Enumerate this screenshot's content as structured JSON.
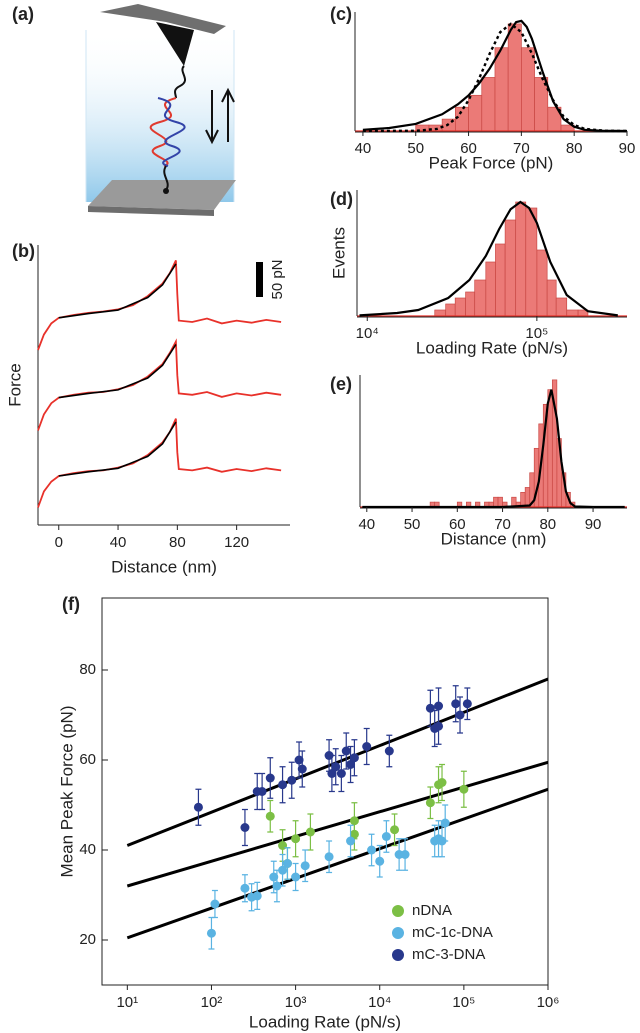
{
  "chart_data": [
    {
      "type": "schematic",
      "label": "(a)"
    },
    {
      "type": "line",
      "label": "(b)",
      "x_label": "Distance (nm)",
      "y_label": "Force",
      "xlim": [
        -14,
        156
      ],
      "xticks": [
        0,
        40,
        80,
        120
      ],
      "ylim": [
        0,
        400
      ],
      "scale_bar": {
        "value": 50,
        "label": "50 pN"
      },
      "x": [
        -14,
        -10,
        -5,
        0,
        10,
        20,
        30,
        40,
        50,
        60,
        70,
        75,
        79,
        80,
        81,
        90,
        100,
        110,
        120,
        130,
        140,
        150
      ],
      "series": [
        {
          "color": "#e8312a",
          "values": [
            250,
            272,
            288,
            296,
            300,
            303,
            305,
            308,
            314,
            327,
            345,
            360,
            378,
            330,
            292,
            290,
            295,
            288,
            292,
            289,
            293,
            290
          ]
        },
        {
          "color": "#e8312a",
          "values": [
            135,
            158,
            174,
            182,
            186,
            189,
            190,
            194,
            200,
            212,
            230,
            246,
            262,
            214,
            188,
            186,
            190,
            183,
            188,
            185,
            189,
            186
          ]
        },
        {
          "color": "#e8312a",
          "values": [
            25,
            48,
            62,
            70,
            74,
            77,
            78,
            82,
            88,
            100,
            118,
            133,
            152,
            104,
            80,
            78,
            82,
            76,
            80,
            77,
            81,
            78
          ]
        },
        {
          "color": "#000000",
          "x": [
            0,
            20,
            40,
            60,
            70,
            79
          ],
          "values": [
            296,
            302,
            307,
            325,
            343,
            373
          ]
        },
        {
          "color": "#000000",
          "x": [
            0,
            20,
            40,
            60,
            70,
            79
          ],
          "values": [
            182,
            188,
            193,
            210,
            228,
            258
          ]
        },
        {
          "color": "#000000",
          "x": [
            0,
            20,
            40,
            60,
            70,
            79
          ],
          "values": [
            70,
            76,
            81,
            98,
            116,
            147
          ]
        }
      ]
    },
    {
      "type": "histogram",
      "label": "(c)",
      "x_label": "Peak Force (pN)",
      "xlim": [
        38.5,
        90
      ],
      "xticks": [
        40,
        50,
        60,
        70,
        80,
        90
      ],
      "ylim": [
        0,
        20
      ],
      "bins": [
        50,
        52.5,
        55,
        57.5,
        60,
        62.5,
        65,
        67.5,
        70,
        72.5,
        75,
        77.5,
        80
      ],
      "counts": [
        1,
        1,
        2,
        4,
        6,
        9,
        14,
        18,
        14,
        9,
        4,
        1
      ],
      "color": "#e8635f",
      "fits": [
        {
          "color": "#000000",
          "dashed": false,
          "x": [
            40,
            45,
            50,
            55,
            58,
            60,
            62,
            64,
            66,
            68,
            69,
            70,
            71,
            72,
            74,
            76,
            78,
            80,
            82,
            85,
            90
          ],
          "values": [
            0.2,
            0.5,
            1.2,
            2.8,
            4.5,
            6,
            8,
            10.5,
            13.5,
            17,
            18.3,
            18.5,
            17.5,
            15.5,
            10,
            5,
            2,
            0.7,
            0.2,
            0.05,
            0
          ]
        },
        {
          "color": "#000000",
          "dashed": true,
          "x": [
            40,
            50,
            54,
            56,
            58,
            60,
            62,
            64,
            66,
            68,
            70,
            72,
            74,
            76,
            78,
            80,
            82,
            86,
            90
          ],
          "values": [
            0,
            0.03,
            0.36,
            1,
            2.4,
            5.2,
            8.8,
            13,
            16.6,
            18,
            16.6,
            13,
            8.8,
            5.2,
            2.4,
            1,
            0.36,
            0.03,
            0
          ]
        }
      ]
    },
    {
      "type": "histogram",
      "label": "(d)",
      "x_label": "Loading Rate (pN/s)",
      "y_label": "Events",
      "log_x": true,
      "xlim": [
        8700,
        340000
      ],
      "xticks": [
        {
          "value": 10000,
          "label": "10⁴"
        },
        {
          "value": 100000,
          "label": "10⁵"
        }
      ],
      "ylim": [
        0,
        21
      ],
      "bins": [
        25000,
        29000,
        33000,
        38000,
        43000,
        50000,
        57000,
        65000,
        75000,
        86000,
        100000,
        115000,
        130000,
        150000,
        175000,
        200000
      ],
      "counts": [
        1,
        2,
        3,
        4,
        6,
        9,
        12,
        16,
        19,
        18,
        11,
        6,
        3,
        1,
        1
      ],
      "color": "#e8635f",
      "fits": [
        {
          "color": "#000000",
          "dashed": false,
          "x": [
            9000,
            15000,
            20000,
            30000,
            40000,
            50000,
            60000,
            70000,
            80000,
            90000,
            100000,
            120000,
            150000,
            200000,
            300000
          ],
          "values": [
            0.1,
            0.5,
            1,
            3,
            6,
            10,
            14.5,
            17.8,
            19,
            18,
            15.5,
            9,
            3.5,
            0.8,
            0.1
          ]
        }
      ]
    },
    {
      "type": "histogram",
      "label": "(e)",
      "x_label": "Distance (nm)",
      "xlim": [
        38.5,
        97.5
      ],
      "xticks": [
        40,
        50,
        60,
        70,
        80,
        90
      ],
      "ylim": [
        0,
        27
      ],
      "bins": [
        54,
        55,
        56,
        57,
        58,
        59,
        60,
        61,
        62,
        63,
        64,
        65,
        66,
        67,
        68,
        69,
        70,
        71,
        72,
        73,
        74,
        75,
        76,
        77,
        78,
        79,
        80,
        81,
        82,
        83,
        84,
        85,
        86
      ],
      "counts": [
        1,
        1,
        0,
        0,
        0,
        0,
        1,
        0,
        1,
        0,
        1,
        0,
        1,
        1,
        2,
        2,
        1,
        0,
        2,
        1,
        3,
        4,
        7,
        12,
        17,
        21,
        24,
        26,
        14,
        7,
        3,
        1
      ],
      "color": "#e8635f",
      "fits": [
        {
          "color": "#000000",
          "dashed": false,
          "x": [
            39,
            70,
            76,
            77,
            78,
            79,
            80,
            80.8,
            82,
            83,
            84,
            85,
            86,
            90,
            97
          ],
          "values": [
            0,
            0,
            0.3,
            1.4,
            5.2,
            12.7,
            21.2,
            24,
            18.1,
            9.3,
            3.2,
            0.8,
            0.1,
            0,
            0
          ]
        }
      ]
    },
    {
      "type": "scatter",
      "label": "(f)",
      "x_label": "Loading Rate (pN/s)",
      "y_label": "Mean Peak Force (pN)",
      "log_x": true,
      "xlim": [
        5,
        1000000
      ],
      "ylim": [
        10,
        96
      ],
      "xticks": [
        {
          "value": 10,
          "label": "10¹"
        },
        {
          "value": 100,
          "label": "10²"
        },
        {
          "value": 1000,
          "label": "10³"
        },
        {
          "value": 10000,
          "label": "10⁴"
        },
        {
          "value": 100000,
          "label": "10⁵"
        },
        {
          "value": 1000000,
          "label": "10⁶"
        }
      ],
      "yticks": [
        20,
        40,
        60,
        80
      ],
      "legend": "bottom right",
      "series": [
        {
          "name": "nDNA",
          "color": "#7cbf45",
          "x": [
            500,
            700,
            800,
            1000,
            1500,
            5000,
            5000,
            15000,
            40000,
            50000,
            55000,
            100000
          ],
          "values": [
            47.5,
            41,
            37,
            42.5,
            44,
            43.5,
            46.5,
            44.5,
            50.5,
            54.5,
            55,
            53.5
          ],
          "errors": [
            3.5,
            3.5,
            3.5,
            4,
            4,
            3.5,
            4,
            3.5,
            3.5,
            4,
            4,
            4
          ],
          "fit": {
            "x": [
              10,
              1000000
            ],
            "values": [
              32,
              59.5
            ]
          }
        },
        {
          "name": "mC-1c-DNA",
          "color": "#5ab3e2",
          "x": [
            100,
            110,
            250,
            300,
            350,
            550,
            600,
            700,
            800,
            1000,
            1300,
            2500,
            4500,
            8000,
            10000,
            12000,
            17000,
            20000,
            45000,
            50000,
            55000,
            60000
          ],
          "values": [
            21.5,
            28,
            31.5,
            29.5,
            29.8,
            34,
            32,
            35.5,
            37,
            34,
            36.5,
            38.5,
            42,
            40,
            37.5,
            43,
            39,
            39,
            42,
            42.5,
            42,
            46
          ],
          "errors": [
            3.5,
            3,
            3,
            3,
            3,
            3.5,
            3.5,
            3.5,
            3.5,
            3,
            3.5,
            3.5,
            3.5,
            3.5,
            3.5,
            3.5,
            3.5,
            3.5,
            3.5,
            4,
            3.5,
            4
          ],
          "fit": {
            "x": [
              10,
              1000000
            ],
            "values": [
              20.5,
              53.5
            ]
          }
        },
        {
          "name": "mC-3-DNA",
          "color": "#28388c",
          "x": [
            70,
            250,
            350,
            400,
            500,
            700,
            900,
            1100,
            1200,
            2500,
            2700,
            3000,
            3500,
            4000,
            4500,
            5000,
            7000,
            13000,
            40000,
            45000,
            50000,
            50000,
            80000,
            90000,
            110000
          ],
          "values": [
            49.5,
            45,
            53,
            53,
            56,
            54.5,
            55.5,
            60,
            58,
            61,
            57,
            58.5,
            57,
            62,
            59,
            60.5,
            63,
            62,
            71.5,
            67,
            67.5,
            72,
            72.5,
            70,
            72.5
          ],
          "errors": [
            4,
            4,
            4,
            4,
            4.5,
            4,
            4,
            4,
            4,
            3.5,
            4,
            4,
            4,
            4,
            4,
            4,
            4,
            3.5,
            4,
            4,
            4,
            4,
            4,
            4,
            3.5
          ],
          "fit": {
            "x": [
              10,
              1000000
            ],
            "values": [
              41,
              78
            ]
          }
        }
      ]
    }
  ]
}
